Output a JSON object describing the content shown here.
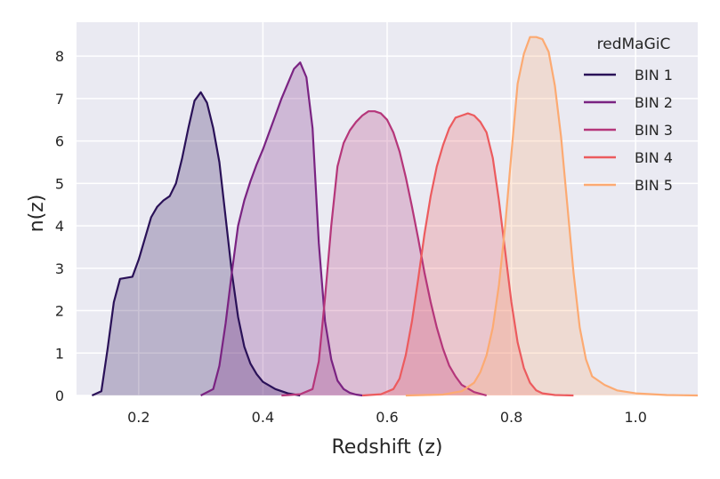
{
  "chart_data": {
    "type": "area",
    "title": "",
    "xlabel": "Redshift (z)",
    "ylabel": "n(z)",
    "xlim": [
      0.1,
      1.1
    ],
    "ylim": [
      0,
      8.8
    ],
    "xticks": [
      0.2,
      0.4,
      0.6,
      0.8,
      1.0
    ],
    "xtick_labels": [
      "0.2",
      "0.4",
      "0.6",
      "0.8",
      "1.0"
    ],
    "yticks": [
      0,
      1,
      2,
      3,
      4,
      5,
      6,
      7,
      8
    ],
    "ytick_labels": [
      "0",
      "1",
      "2",
      "3",
      "4",
      "5",
      "6",
      "7",
      "8"
    ],
    "grid": true,
    "legend_title": "redMaGiC",
    "legend_position": "top-right",
    "series": [
      {
        "name": "BIN 1",
        "color": "#2a1158",
        "x": [
          0.125,
          0.14,
          0.15,
          0.16,
          0.17,
          0.19,
          0.2,
          0.21,
          0.22,
          0.23,
          0.24,
          0.25,
          0.26,
          0.27,
          0.28,
          0.29,
          0.3,
          0.31,
          0.32,
          0.33,
          0.34,
          0.35,
          0.36,
          0.37,
          0.38,
          0.39,
          0.4,
          0.42,
          0.44,
          0.46
        ],
        "y": [
          0.0,
          0.1,
          1.1,
          2.2,
          2.75,
          2.8,
          3.2,
          3.7,
          4.2,
          4.45,
          4.6,
          4.7,
          5.0,
          5.6,
          6.3,
          6.95,
          7.15,
          6.9,
          6.3,
          5.5,
          4.2,
          2.9,
          1.85,
          1.15,
          0.75,
          0.5,
          0.32,
          0.15,
          0.05,
          0.0
        ]
      },
      {
        "name": "BIN 2",
        "color": "#7a2382",
        "x": [
          0.3,
          0.32,
          0.33,
          0.34,
          0.35,
          0.36,
          0.37,
          0.38,
          0.39,
          0.4,
          0.42,
          0.43,
          0.44,
          0.45,
          0.46,
          0.47,
          0.48,
          0.49,
          0.5,
          0.51,
          0.52,
          0.53,
          0.54,
          0.55,
          0.56
        ],
        "y": [
          0.0,
          0.15,
          0.7,
          1.7,
          2.9,
          4.0,
          4.6,
          5.05,
          5.45,
          5.8,
          6.6,
          7.0,
          7.35,
          7.7,
          7.85,
          7.5,
          6.3,
          3.6,
          1.75,
          0.85,
          0.35,
          0.15,
          0.06,
          0.02,
          0.0
        ]
      },
      {
        "name": "BIN 3",
        "color": "#b5367a",
        "x": [
          0.43,
          0.46,
          0.48,
          0.49,
          0.5,
          0.51,
          0.52,
          0.53,
          0.54,
          0.55,
          0.56,
          0.57,
          0.58,
          0.59,
          0.6,
          0.61,
          0.62,
          0.63,
          0.64,
          0.65,
          0.66,
          0.67,
          0.68,
          0.69,
          0.7,
          0.71,
          0.72,
          0.74,
          0.76
        ],
        "y": [
          0.0,
          0.03,
          0.15,
          0.8,
          2.3,
          4.0,
          5.4,
          5.95,
          6.25,
          6.45,
          6.6,
          6.7,
          6.7,
          6.65,
          6.5,
          6.2,
          5.75,
          5.15,
          4.45,
          3.7,
          2.9,
          2.2,
          1.6,
          1.1,
          0.7,
          0.45,
          0.25,
          0.08,
          0.0
        ]
      },
      {
        "name": "BIN 4",
        "color": "#ec5b5e",
        "x": [
          0.56,
          0.59,
          0.61,
          0.62,
          0.63,
          0.64,
          0.65,
          0.66,
          0.67,
          0.68,
          0.69,
          0.7,
          0.71,
          0.72,
          0.73,
          0.74,
          0.75,
          0.76,
          0.77,
          0.78,
          0.79,
          0.8,
          0.81,
          0.82,
          0.83,
          0.84,
          0.85,
          0.87,
          0.9
        ],
        "y": [
          0.0,
          0.03,
          0.15,
          0.4,
          0.95,
          1.75,
          2.75,
          3.8,
          4.7,
          5.4,
          5.9,
          6.3,
          6.55,
          6.6,
          6.65,
          6.6,
          6.45,
          6.2,
          5.6,
          4.6,
          3.4,
          2.2,
          1.25,
          0.65,
          0.3,
          0.12,
          0.05,
          0.01,
          0.0
        ]
      },
      {
        "name": "BIN 5",
        "color": "#fcaa72",
        "x": [
          0.63,
          0.69,
          0.72,
          0.74,
          0.75,
          0.76,
          0.77,
          0.78,
          0.79,
          0.8,
          0.81,
          0.82,
          0.83,
          0.84,
          0.85,
          0.86,
          0.87,
          0.88,
          0.89,
          0.9,
          0.91,
          0.92,
          0.93,
          0.95,
          0.97,
          1.0,
          1.05,
          1.1
        ],
        "y": [
          0.0,
          0.02,
          0.1,
          0.3,
          0.55,
          0.95,
          1.6,
          2.6,
          4.0,
          5.7,
          7.35,
          8.05,
          8.45,
          8.45,
          8.4,
          8.1,
          7.3,
          6.1,
          4.5,
          2.9,
          1.6,
          0.85,
          0.45,
          0.25,
          0.12,
          0.05,
          0.01,
          0.0
        ]
      }
    ]
  }
}
